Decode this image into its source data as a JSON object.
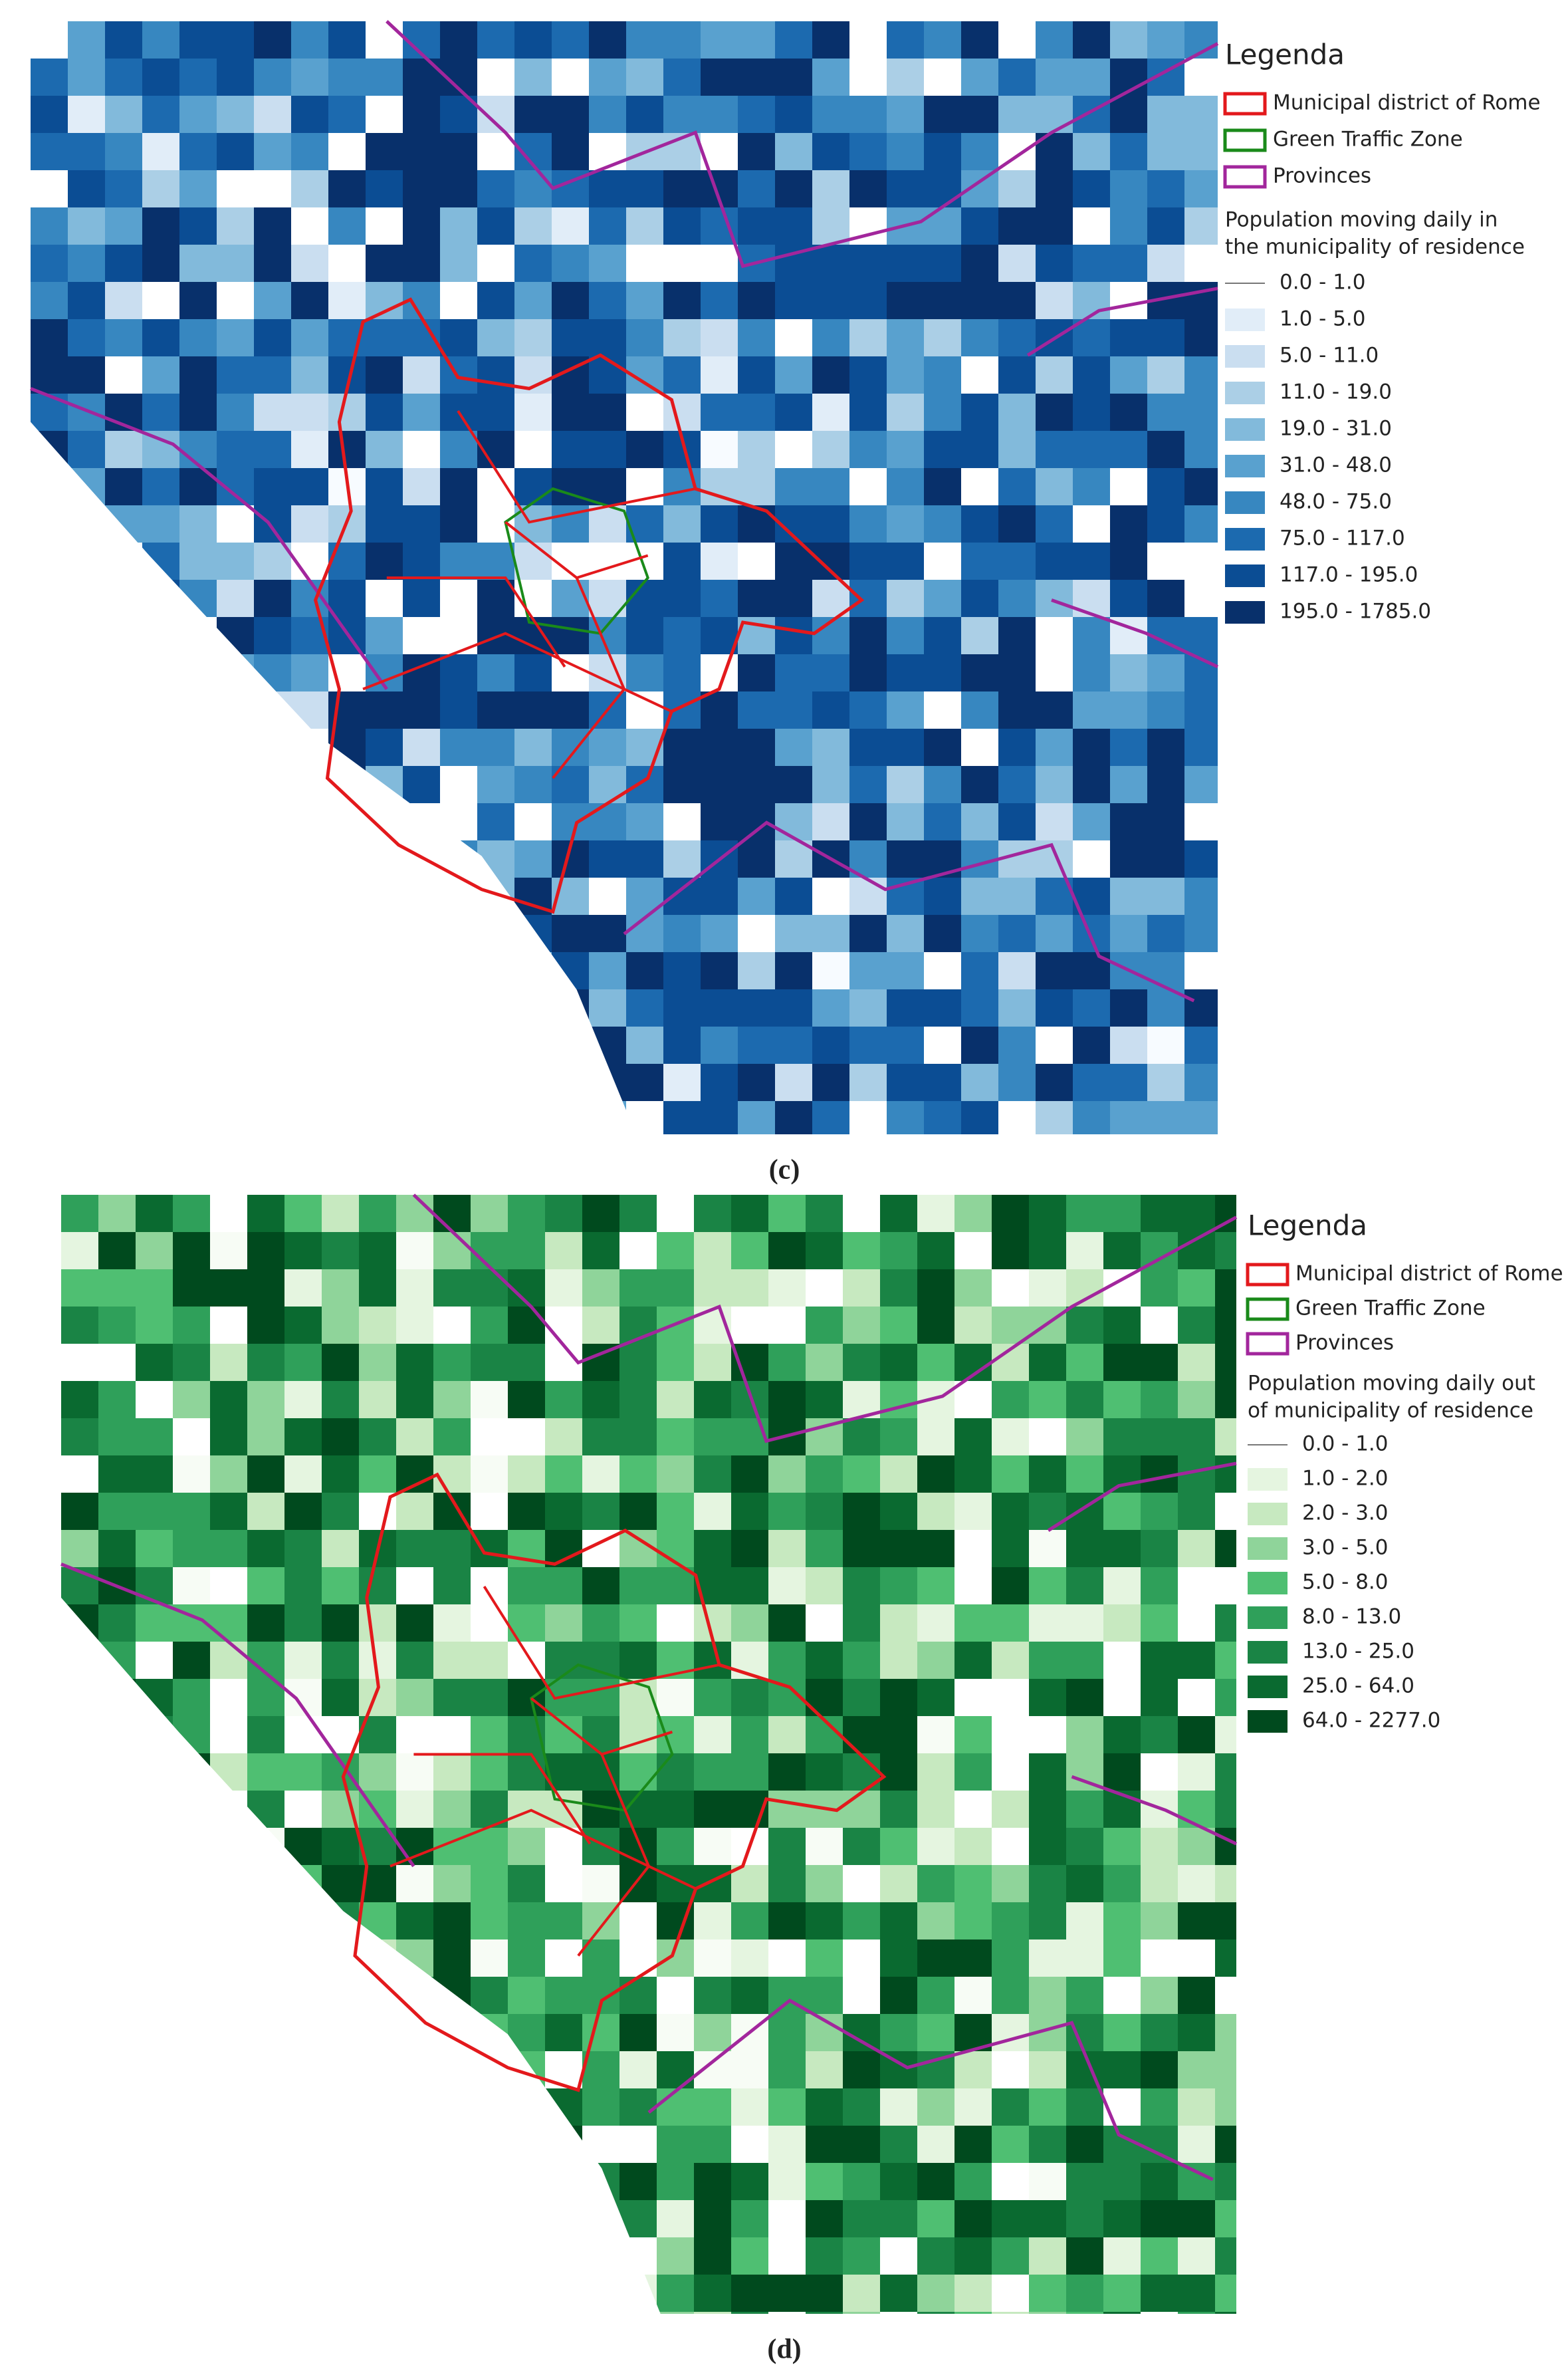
{
  "panels": [
    {
      "caption": "(c)",
      "legend": {
        "title": "Legenda",
        "layers": [
          {
            "label": "Municipal district of Rome",
            "color": "#e3191c"
          },
          {
            "label": "Green Traffic Zone",
            "color": "#1a8a1a"
          },
          {
            "label": "Provinces",
            "color": "#a2269c"
          }
        ],
        "class_title": [
          "Population moving daily in",
          "the municipality of residence"
        ],
        "classes": [
          {
            "label": "0.0 - 1.0",
            "color": "#f7fbff"
          },
          {
            "label": "1.0 - 5.0",
            "color": "#e1edf8"
          },
          {
            "label": "5.0 - 11.0",
            "color": "#cadef0"
          },
          {
            "label": "11.0 - 19.0",
            "color": "#abcfe6"
          },
          {
            "label": "19.0 - 31.0",
            "color": "#82badb"
          },
          {
            "label": "31.0 - 48.0",
            "color": "#59a1cf"
          },
          {
            "label": "48.0 - 75.0",
            "color": "#3787c0"
          },
          {
            "label": "75.0 - 117.0",
            "color": "#1c6aaf"
          },
          {
            "label": "117.0 - 195.0",
            "color": "#0b4d94"
          },
          {
            "label": "195.0 - 1785.0",
            "color": "#08306b"
          }
        ]
      }
    },
    {
      "caption": "(d)",
      "legend": {
        "title": "Legenda",
        "layers": [
          {
            "label": "Municipal district of Rome",
            "color": "#e3191c"
          },
          {
            "label": "Green Traffic Zone",
            "color": "#1a8a1a"
          },
          {
            "label": "Provinces",
            "color": "#a2269c"
          }
        ],
        "class_title": [
          "Population moving daily out",
          "of municipality of residence"
        ],
        "classes": [
          {
            "label": "0.0 - 1.0",
            "color": "#f7fcf5"
          },
          {
            "label": "1.0 - 2.0",
            "color": "#e5f5e0"
          },
          {
            "label": "2.0 - 3.0",
            "color": "#c7e9c0"
          },
          {
            "label": "3.0 - 5.0",
            "color": "#8fd49a"
          },
          {
            "label": "5.0 - 8.0",
            "color": "#4fbf72"
          },
          {
            "label": "8.0 - 13.0",
            "color": "#2fa05a"
          },
          {
            "label": "13.0 - 25.0",
            "color": "#1a8445"
          },
          {
            "label": "25.0 - 64.0",
            "color": "#0a6a30"
          },
          {
            "label": "64.0 - 2277.0",
            "color": "#004a1e"
          }
        ]
      }
    }
  ]
}
